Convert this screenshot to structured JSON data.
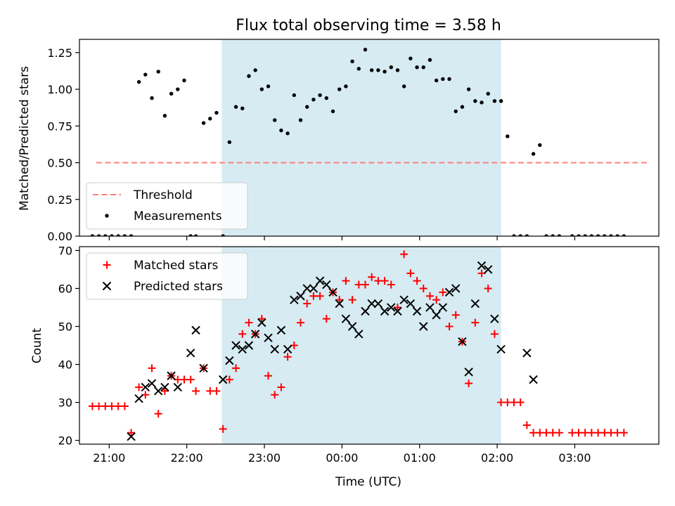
{
  "figure": {
    "title": "Flux total observing time = 3.58 h"
  },
  "chart_data": [
    {
      "type": "scatter",
      "ylabel": "Matched/Predicted stars",
      "xlabel": "",
      "xlim": [
        "20:37",
        "04:05"
      ],
      "ylim": [
        0,
        1.34
      ],
      "yticks": [
        "0.00",
        "0.25",
        "0.50",
        "0.75",
        "1.00",
        "1.25"
      ],
      "shaded_interval": [
        "22:27",
        "02:03"
      ],
      "shaded_color": "#add8e6",
      "legend": {
        "placement": "lower-left",
        "entries": [
          "Threshold",
          "Measurements"
        ]
      },
      "series": [
        {
          "name": "Threshold",
          "style": "dashed-line",
          "color": "#ff7f7f",
          "x": [
            "20:50",
            "03:57"
          ],
          "y": [
            0.5,
            0.5
          ]
        },
        {
          "name": "Measurements",
          "style": "dot",
          "color": "#000000",
          "x": [
            "20:47",
            "20:52",
            "20:57",
            "21:02",
            "21:07",
            "21:12",
            "21:17",
            "21:23",
            "21:28",
            "21:33",
            "21:38",
            "21:43",
            "21:48",
            "21:53",
            "21:58",
            "22:03",
            "22:07",
            "22:13",
            "22:18",
            "22:23",
            "22:28",
            "22:33",
            "22:38",
            "22:43",
            "22:48",
            "22:53",
            "22:58",
            "23:03",
            "23:08",
            "23:13",
            "23:18",
            "23:23",
            "23:28",
            "23:33",
            "23:38",
            "23:43",
            "23:48",
            "23:53",
            "23:58",
            "00:03",
            "00:08",
            "00:13",
            "00:18",
            "00:23",
            "00:28",
            "00:33",
            "00:38",
            "00:43",
            "00:48",
            "00:53",
            "00:58",
            "01:03",
            "01:08",
            "01:13",
            "01:18",
            "01:23",
            "01:28",
            "01:33",
            "01:38",
            "01:43",
            "01:48",
            "01:53",
            "01:58",
            "02:03",
            "02:08",
            "02:13",
            "02:18",
            "02:23",
            "02:28",
            "02:33",
            "02:38",
            "02:43",
            "02:48",
            "02:58",
            "03:03",
            "03:08",
            "03:13",
            "03:18",
            "03:23",
            "03:28",
            "03:33",
            "03:38"
          ],
          "y": [
            0,
            0,
            0,
            0,
            0,
            0,
            0,
            1.05,
            1.1,
            0.94,
            1.12,
            0.82,
            0.97,
            1.0,
            1.06,
            0,
            0,
            0.77,
            0.8,
            0.84,
            0,
            0.64,
            0.88,
            0.87,
            1.09,
            1.13,
            1.0,
            1.02,
            0.79,
            0.72,
            0.7,
            0.96,
            0.79,
            0.88,
            0.93,
            0.96,
            0.94,
            0.85,
            1.0,
            1.02,
            1.19,
            1.14,
            1.27,
            1.13,
            1.13,
            1.12,
            1.15,
            1.13,
            1.02,
            1.21,
            1.15,
            1.15,
            1.2,
            1.06,
            1.07,
            1.07,
            0.85,
            0.88,
            1.0,
            0.92,
            0.91,
            0.97,
            0.92,
            0.92,
            0.68,
            0,
            0,
            0,
            0.56,
            0.62,
            0,
            0,
            0,
            0,
            0,
            0,
            0,
            0,
            0,
            0,
            0,
            0
          ]
        }
      ]
    },
    {
      "type": "scatter",
      "ylabel": "Count",
      "xlabel": "Time (UTC)",
      "xlim": [
        "20:37",
        "04:05"
      ],
      "ylim": [
        19,
        71
      ],
      "yticks": [
        "20",
        "30",
        "40",
        "50",
        "60",
        "70"
      ],
      "xticks": [
        "21:00",
        "22:00",
        "23:00",
        "00:00",
        "01:00",
        "02:00",
        "03:00"
      ],
      "shaded_interval": [
        "22:27",
        "02:03"
      ],
      "shaded_color": "#add8e6",
      "legend": {
        "placement": "top-left",
        "entries": [
          "Matched stars",
          "Predicted stars"
        ]
      },
      "series": [
        {
          "name": "Matched stars",
          "marker": "+",
          "color": "#ff0000",
          "x": [
            "20:47",
            "20:52",
            "20:57",
            "21:02",
            "21:07",
            "21:12",
            "21:17",
            "21:23",
            "21:28",
            "21:33",
            "21:38",
            "21:43",
            "21:48",
            "21:53",
            "21:58",
            "22:03",
            "22:07",
            "22:13",
            "22:18",
            "22:23",
            "22:28",
            "22:33",
            "22:38",
            "22:43",
            "22:48",
            "22:53",
            "22:58",
            "23:03",
            "23:08",
            "23:13",
            "23:18",
            "23:23",
            "23:28",
            "23:33",
            "23:38",
            "23:43",
            "23:48",
            "23:53",
            "23:58",
            "00:03",
            "00:08",
            "00:13",
            "00:18",
            "00:23",
            "00:28",
            "00:33",
            "00:38",
            "00:43",
            "00:48",
            "00:53",
            "00:58",
            "01:03",
            "01:08",
            "01:13",
            "01:18",
            "01:23",
            "01:28",
            "01:33",
            "01:38",
            "01:43",
            "01:48",
            "01:53",
            "01:58",
            "02:03",
            "02:08",
            "02:13",
            "02:18",
            "02:23",
            "02:28",
            "02:33",
            "02:38",
            "02:43",
            "02:48",
            "02:58",
            "03:03",
            "03:08",
            "03:13",
            "03:18",
            "03:23",
            "03:28",
            "03:33",
            "03:38"
          ],
          "y": [
            29,
            29,
            29,
            29,
            29,
            29,
            22,
            34,
            32,
            39,
            27,
            33,
            37,
            36,
            36,
            36,
            33,
            39,
            33,
            33,
            23,
            36,
            39,
            48,
            51,
            48,
            52,
            37,
            32,
            34,
            42,
            45,
            51,
            56,
            58,
            58,
            52,
            59,
            57,
            62,
            57,
            61,
            61,
            63,
            62,
            62,
            61,
            55,
            69,
            64,
            62,
            60,
            58,
            57,
            59,
            50,
            53,
            46,
            35,
            51,
            64,
            60,
            48,
            30,
            30,
            30,
            30,
            24,
            22,
            22,
            22,
            22,
            22,
            22,
            22,
            22,
            22,
            22,
            22,
            22,
            22,
            22
          ]
        },
        {
          "name": "Predicted stars",
          "marker": "x",
          "color": "#000000",
          "x": [
            "21:17",
            "21:23",
            "21:28",
            "21:33",
            "21:38",
            "21:43",
            "21:48",
            "21:53",
            "22:03",
            "22:07",
            "22:13",
            "22:28",
            "22:33",
            "22:38",
            "22:43",
            "22:48",
            "22:53",
            "22:58",
            "23:03",
            "23:08",
            "23:13",
            "23:18",
            "23:23",
            "23:28",
            "23:33",
            "23:38",
            "23:43",
            "23:48",
            "23:53",
            "23:58",
            "00:03",
            "00:08",
            "00:13",
            "00:18",
            "00:23",
            "00:28",
            "00:33",
            "00:38",
            "00:43",
            "00:48",
            "00:53",
            "00:58",
            "01:03",
            "01:08",
            "01:13",
            "01:18",
            "01:23",
            "01:28",
            "01:33",
            "01:38",
            "01:43",
            "01:48",
            "01:53",
            "01:58",
            "02:03",
            "02:23",
            "02:28"
          ],
          "y": [
            21,
            31,
            34,
            35,
            33,
            34,
            37,
            34,
            43,
            49,
            39,
            36,
            41,
            45,
            44,
            45,
            48,
            51,
            47,
            44,
            49,
            44,
            57,
            58,
            60,
            60,
            62,
            61,
            59,
            56,
            52,
            50,
            48,
            54,
            56,
            56,
            54,
            55,
            54,
            57,
            56,
            54,
            50,
            55,
            53,
            55,
            59,
            60,
            46,
            38,
            56,
            66,
            65,
            52,
            44,
            43,
            36
          ]
        }
      ]
    }
  ]
}
